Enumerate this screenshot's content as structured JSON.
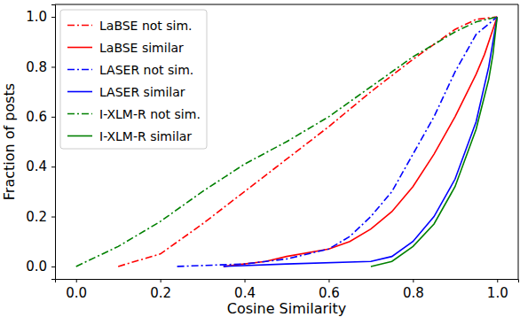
{
  "chart_data": {
    "type": "line",
    "x_label": "Cosine Similarity",
    "y_label": "Fraction of posts",
    "xlim": [
      -0.05,
      1.05
    ],
    "ylim": [
      -0.05,
      1.05
    ],
    "xticks": [
      {
        "value": 0,
        "label": "0.0"
      },
      {
        "value": 0.2,
        "label": "0.2"
      },
      {
        "value": 0.4,
        "label": "0.4"
      },
      {
        "value": 0.6,
        "label": "0.6"
      },
      {
        "value": 0.8,
        "label": "0.8"
      },
      {
        "value": 1,
        "label": "1.0"
      }
    ],
    "yticks": [
      {
        "value": 0,
        "label": "0.0"
      },
      {
        "value": 0.2,
        "label": "0.2"
      },
      {
        "value": 0.4,
        "label": "0.4"
      },
      {
        "value": 0.6,
        "label": "0.6"
      },
      {
        "value": 0.8,
        "label": "0.8"
      },
      {
        "value": 1,
        "label": "1.0"
      }
    ],
    "grid": false,
    "legend": "upper left",
    "series": [
      {
        "name": "LaBSE not sim.",
        "color": "#ff0000",
        "line_style": "dashdot",
        "x": [
          0.1,
          0.2,
          0.3,
          0.4,
          0.5,
          0.6,
          0.7,
          0.8,
          0.9,
          0.95,
          1.0
        ],
        "values": [
          0.0,
          0.05,
          0.17,
          0.3,
          0.43,
          0.56,
          0.7,
          0.83,
          0.95,
          0.99,
          1.0
        ]
      },
      {
        "name": "LaBSE similar",
        "color": "#ff0000",
        "line_style": "solid",
        "x": [
          0.35,
          0.45,
          0.5,
          0.6,
          0.65,
          0.7,
          0.75,
          0.8,
          0.85,
          0.9,
          0.95,
          0.97,
          1.0
        ],
        "values": [
          0.0,
          0.02,
          0.04,
          0.07,
          0.1,
          0.15,
          0.22,
          0.32,
          0.45,
          0.6,
          0.77,
          0.85,
          1.0
        ]
      },
      {
        "name": "LASER not sim.",
        "color": "#0000ff",
        "line_style": "dashdot",
        "x": [
          0.24,
          0.4,
          0.5,
          0.6,
          0.65,
          0.7,
          0.75,
          0.8,
          0.85,
          0.9,
          0.95,
          1.0
        ],
        "values": [
          0.0,
          0.01,
          0.03,
          0.07,
          0.12,
          0.2,
          0.3,
          0.45,
          0.6,
          0.78,
          0.93,
          1.0
        ]
      },
      {
        "name": "LASER similar",
        "color": "#0000ff",
        "line_style": "solid",
        "x": [
          0.35,
          0.5,
          0.7,
          0.75,
          0.8,
          0.85,
          0.9,
          0.95,
          0.98,
          1.0
        ],
        "values": [
          0.0,
          0.01,
          0.02,
          0.04,
          0.1,
          0.2,
          0.35,
          0.58,
          0.8,
          1.0
        ]
      },
      {
        "name": "I-XLM-R not sim.",
        "color": "#008000",
        "line_style": "dashdot",
        "x": [
          0.0,
          0.1,
          0.2,
          0.3,
          0.4,
          0.5,
          0.6,
          0.7,
          0.8,
          0.9,
          0.95,
          1.0
        ],
        "values": [
          0.0,
          0.08,
          0.18,
          0.3,
          0.41,
          0.5,
          0.6,
          0.72,
          0.84,
          0.94,
          0.98,
          1.0
        ]
      },
      {
        "name": "I-XLM-R similar",
        "color": "#008000",
        "line_style": "solid",
        "x": [
          0.7,
          0.75,
          0.8,
          0.85,
          0.9,
          0.95,
          0.98,
          0.99,
          1.0
        ],
        "values": [
          0.0,
          0.02,
          0.08,
          0.17,
          0.32,
          0.55,
          0.75,
          0.85,
          1.0
        ]
      }
    ]
  }
}
